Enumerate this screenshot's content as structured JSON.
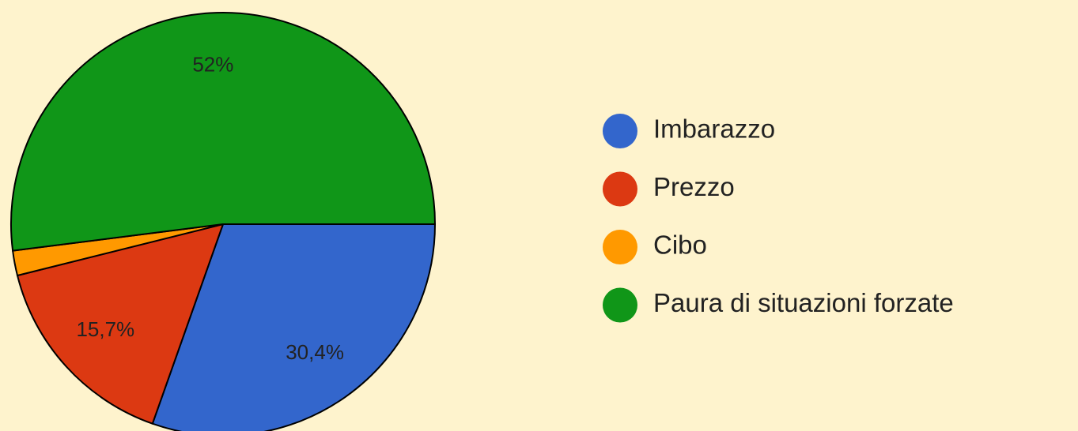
{
  "chart_data": {
    "type": "pie",
    "categories": [
      "Imbarazzo",
      "Prezzo",
      "Cibo",
      "Paura di situazioni forzate"
    ],
    "values": [
      30.4,
      15.7,
      1.9,
      52
    ],
    "value_labels": [
      "30,4%",
      "15,7%",
      null,
      "52%"
    ],
    "colors": [
      "#3366cc",
      "#dc3912",
      "#ff9900",
      "#109618"
    ],
    "legend": "right"
  }
}
